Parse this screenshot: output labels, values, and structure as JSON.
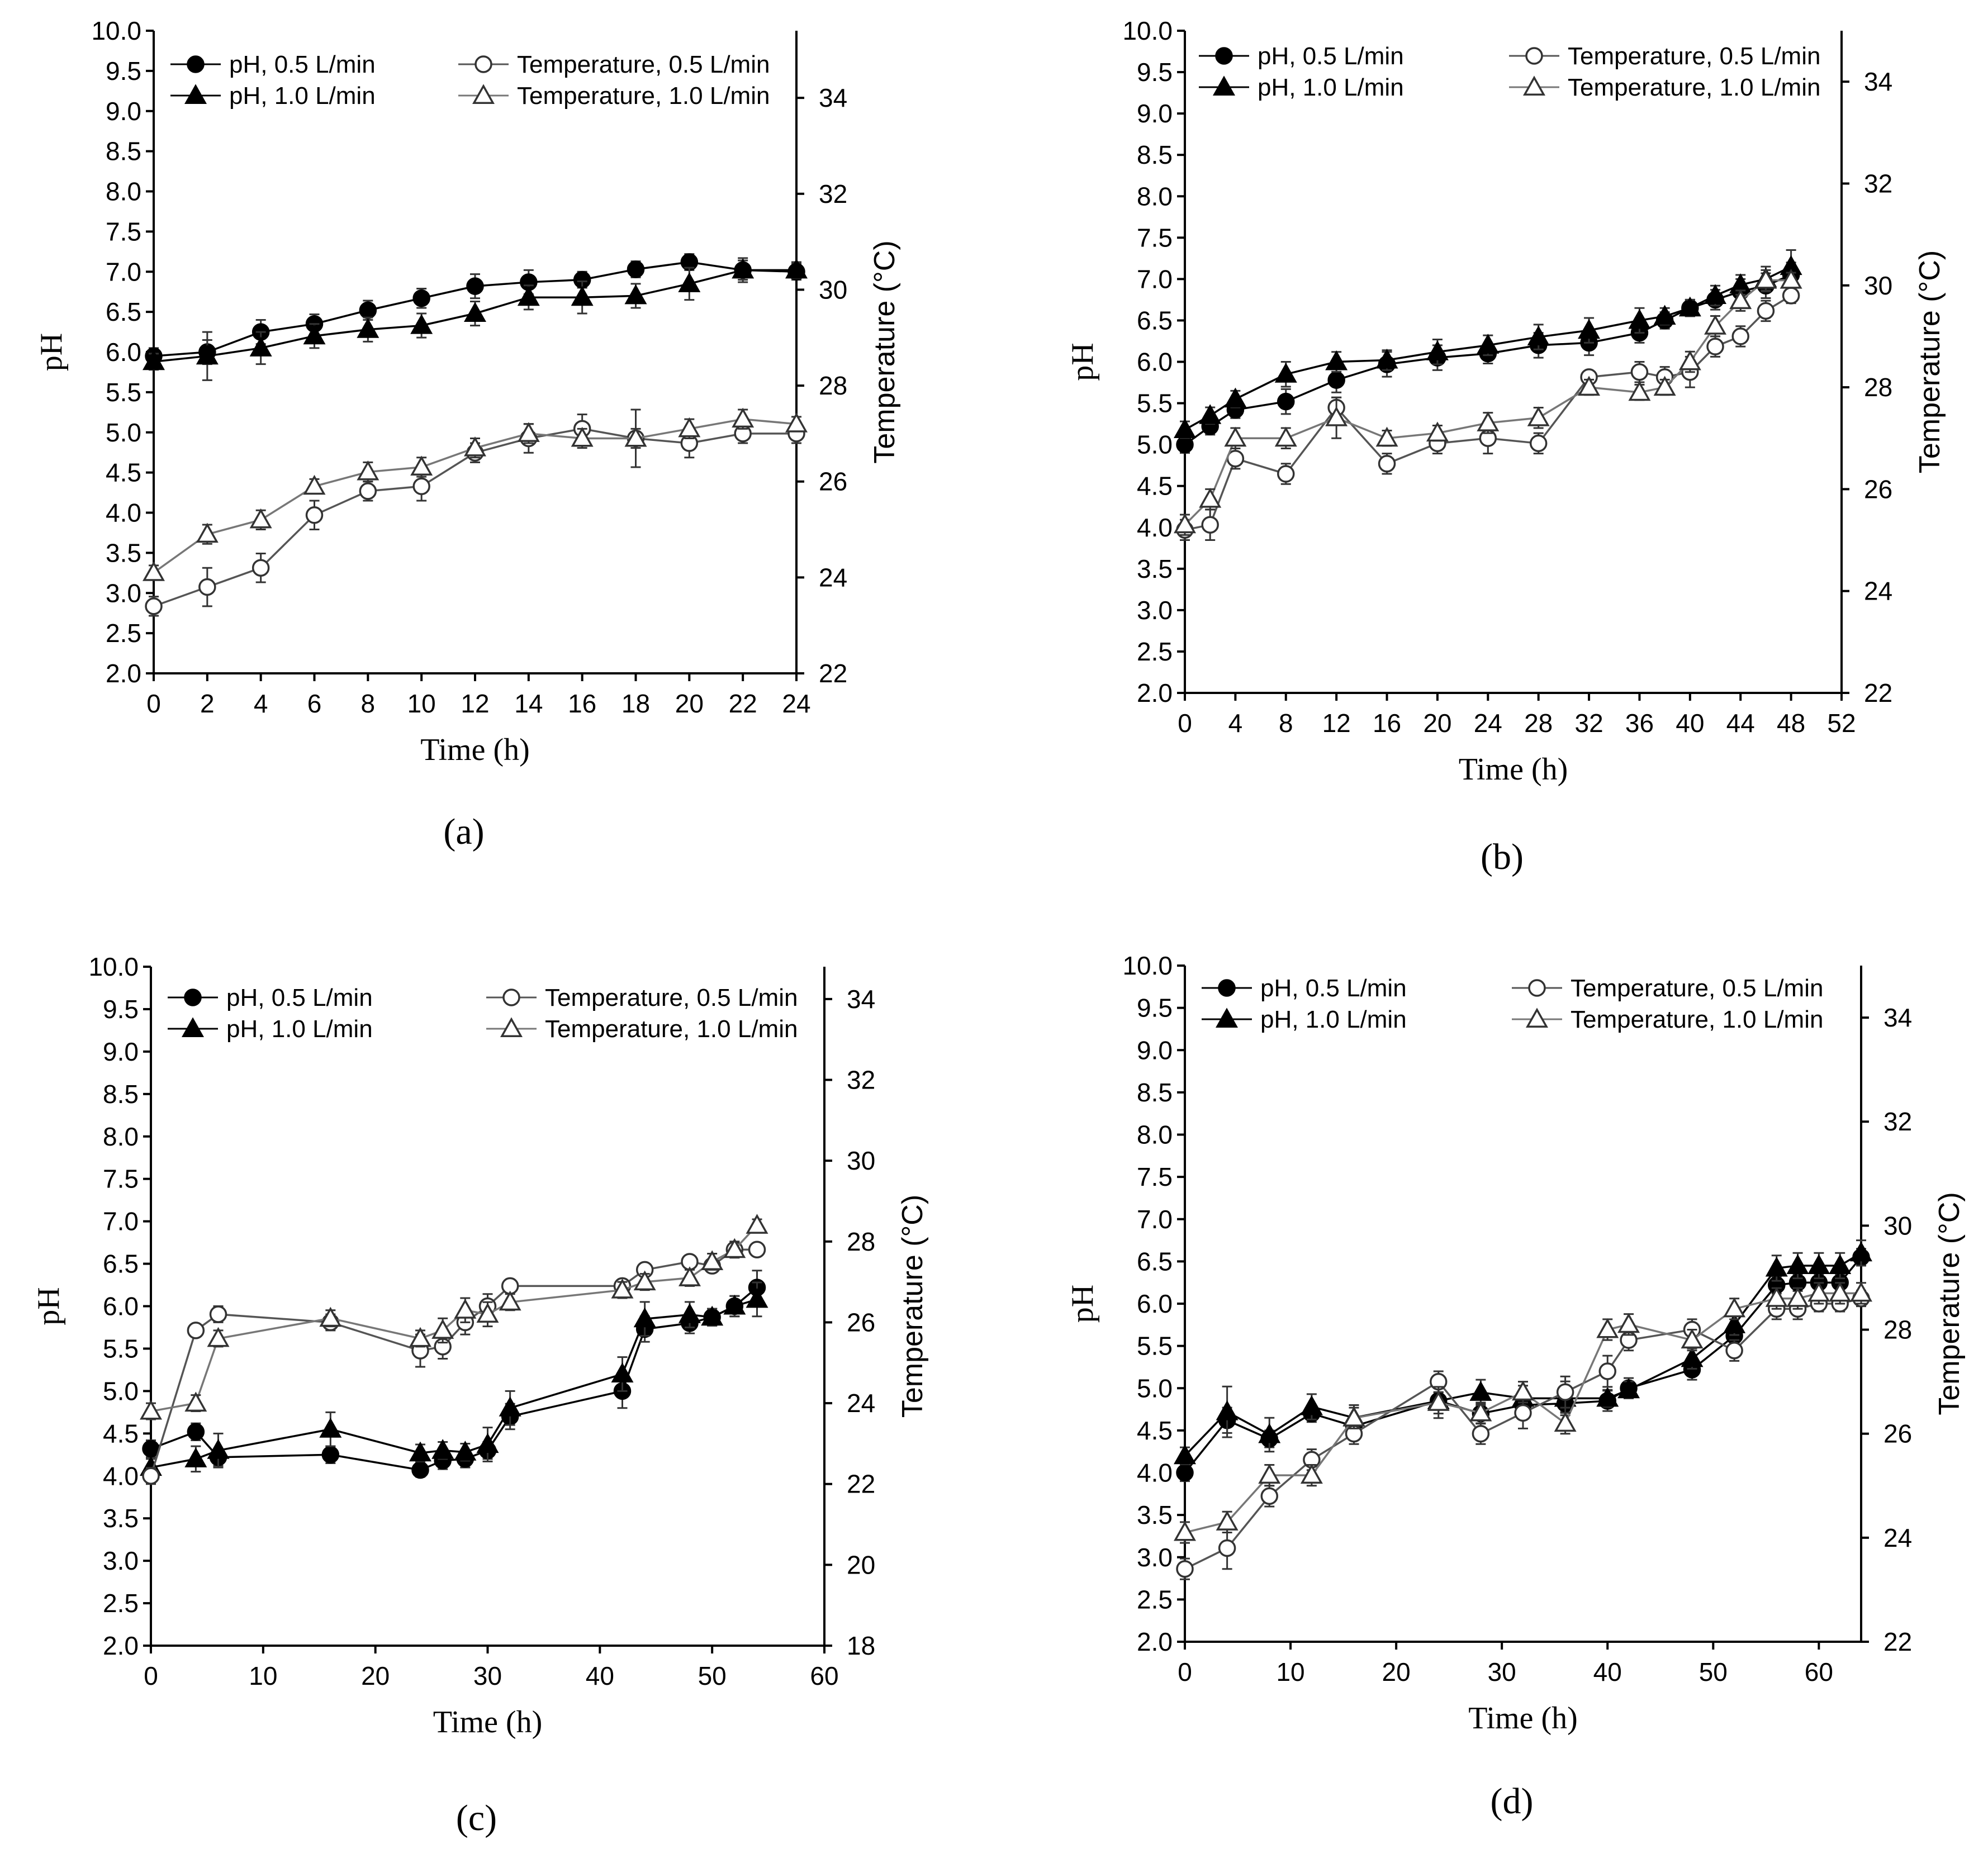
{
  "chart_data": [
    {
      "type": "line",
      "panel_label": "(a)",
      "xlabel": "Time (h)",
      "ylabel": "pH",
      "y2label": "Temperature (°C)",
      "xlim": [
        0,
        24
      ],
      "xticks": [
        0,
        2,
        4,
        6,
        8,
        10,
        12,
        14,
        16,
        18,
        20,
        22,
        24
      ],
      "ylim": [
        2.0,
        10.0
      ],
      "yticks": [
        "2.0",
        "2.5",
        "3.0",
        "3.5",
        "4.0",
        "4.5",
        "5.0",
        "5.5",
        "6.0",
        "6.5",
        "7.0",
        "7.5",
        "8.0",
        "8.5",
        "9.0",
        "9.5",
        "10.0"
      ],
      "y2lim": [
        22,
        35.4
      ],
      "y2ticks": [
        22,
        24,
        26,
        28,
        30,
        32,
        34
      ],
      "series": [
        {
          "name": "pH, 0.5 L/min",
          "axis": "left",
          "marker": "circle-filled",
          "x": [
            0,
            2,
            4,
            6,
            8,
            10,
            12,
            14,
            16,
            18,
            20,
            22,
            24
          ],
          "y": [
            5.95,
            6.0,
            6.25,
            6.35,
            6.52,
            6.67,
            6.82,
            6.87,
            6.9,
            7.03,
            7.12,
            7.02,
            7.0
          ],
          "err": [
            0.1,
            0.15,
            0.15,
            0.12,
            0.12,
            0.12,
            0.15,
            0.15,
            0.1,
            0.1,
            0.1,
            0.12,
            0.1
          ]
        },
        {
          "name": "pH, 1.0 L/min",
          "axis": "left",
          "marker": "triangle-filled",
          "x": [
            0,
            2,
            4,
            6,
            8,
            10,
            12,
            14,
            16,
            18,
            20,
            22,
            24
          ],
          "y": [
            5.88,
            5.95,
            6.05,
            6.2,
            6.28,
            6.33,
            6.48,
            6.68,
            6.68,
            6.7,
            6.85,
            7.02,
            7.02
          ],
          "err": [
            0.1,
            0.3,
            0.2,
            0.15,
            0.15,
            0.15,
            0.15,
            0.15,
            0.2,
            0.15,
            0.2,
            0.15,
            0.1
          ]
        },
        {
          "name": "Temperature, 0.5 L/min",
          "axis": "right",
          "marker": "circle-open",
          "x": [
            0,
            2,
            4,
            6,
            8,
            10,
            12,
            14,
            16,
            18,
            20,
            22,
            24
          ],
          "y": [
            23.4,
            23.8,
            24.2,
            25.3,
            25.8,
            25.9,
            26.6,
            26.9,
            27.1,
            26.9,
            26.8,
            27.0,
            27.0
          ],
          "err": [
            0.2,
            0.4,
            0.3,
            0.3,
            0.2,
            0.3,
            0.2,
            0.3,
            0.3,
            0.6,
            0.3,
            0.2,
            0.2
          ]
        },
        {
          "name": "Temperature, 1.0 L/min",
          "axis": "right",
          "marker": "triangle-open",
          "x": [
            0,
            2,
            4,
            6,
            8,
            10,
            12,
            14,
            16,
            18,
            20,
            22,
            24
          ],
          "y": [
            24.1,
            24.9,
            25.2,
            25.9,
            26.2,
            26.3,
            26.7,
            27.0,
            26.9,
            26.9,
            27.1,
            27.3,
            27.2
          ],
          "err": [
            0.15,
            0.2,
            0.2,
            0.15,
            0.2,
            0.2,
            0.2,
            0.2,
            0.2,
            0.2,
            0.2,
            0.2,
            0.15
          ]
        }
      ]
    },
    {
      "type": "line",
      "panel_label": "(b)",
      "xlabel": "Time (h)",
      "ylabel": "pH",
      "y2label": "Temperature (°C)",
      "xlim": [
        0,
        52
      ],
      "xticks": [
        0,
        4,
        8,
        12,
        16,
        20,
        24,
        28,
        32,
        36,
        40,
        44,
        48,
        52
      ],
      "ylim": [
        2.0,
        10.0
      ],
      "yticks": [
        "2.0",
        "2.5",
        "3.0",
        "3.5",
        "4.0",
        "4.5",
        "5.0",
        "5.5",
        "6.0",
        "6.5",
        "7.0",
        "7.5",
        "8.0",
        "8.5",
        "9.0",
        "9.5",
        "10.0"
      ],
      "y2lim": [
        22,
        35.0
      ],
      "y2ticks": [
        22,
        24,
        26,
        28,
        30,
        32,
        34
      ],
      "series": [
        {
          "name": "pH, 0.5 L/min",
          "axis": "left",
          "marker": "circle-filled",
          "x": [
            0,
            2,
            4,
            8,
            12,
            16,
            20,
            24,
            28,
            32,
            36,
            38,
            40,
            42,
            44,
            46,
            48
          ],
          "y": [
            5.0,
            5.22,
            5.42,
            5.52,
            5.78,
            5.97,
            6.05,
            6.1,
            6.2,
            6.23,
            6.35,
            6.5,
            6.65,
            6.75,
            6.85,
            6.92,
            7.05
          ],
          "err": [
            0.1,
            0.1,
            0.1,
            0.15,
            0.15,
            0.15,
            0.15,
            0.12,
            0.15,
            0.15,
            0.12,
            0.1,
            0.1,
            0.12,
            0.15,
            0.15,
            0.15
          ]
        },
        {
          "name": "pH, 1.0 L/min",
          "axis": "left",
          "marker": "triangle-filled",
          "x": [
            0,
            2,
            4,
            8,
            12,
            16,
            20,
            24,
            28,
            32,
            36,
            38,
            40,
            42,
            44,
            46,
            48
          ],
          "y": [
            5.18,
            5.35,
            5.55,
            5.85,
            6.0,
            6.02,
            6.12,
            6.2,
            6.3,
            6.38,
            6.5,
            6.55,
            6.65,
            6.8,
            6.93,
            7.0,
            7.15
          ],
          "err": [
            0.1,
            0.1,
            0.1,
            0.15,
            0.12,
            0.12,
            0.15,
            0.12,
            0.15,
            0.15,
            0.15,
            0.1,
            0.1,
            0.12,
            0.12,
            0.15,
            0.2
          ]
        },
        {
          "name": "Temperature, 0.5 L/min",
          "axis": "right",
          "marker": "circle-open",
          "x": [
            0,
            2,
            4,
            8,
            12,
            16,
            20,
            24,
            28,
            32,
            36,
            38,
            40,
            42,
            44,
            46,
            48
          ],
          "y": [
            25.2,
            25.3,
            26.6,
            26.3,
            27.6,
            26.5,
            26.9,
            27.0,
            26.9,
            28.2,
            28.3,
            28.2,
            28.3,
            28.8,
            29.0,
            29.5,
            29.8
          ],
          "err": [
            0.2,
            0.3,
            0.2,
            0.2,
            0.2,
            0.2,
            0.2,
            0.3,
            0.2,
            0.1,
            0.2,
            0.2,
            0.3,
            0.2,
            0.2,
            0.2,
            0.15
          ]
        },
        {
          "name": "Temperature, 1.0 L/min",
          "axis": "right",
          "marker": "triangle-open",
          "x": [
            0,
            2,
            4,
            8,
            12,
            16,
            20,
            24,
            28,
            32,
            36,
            38,
            40,
            42,
            44,
            46,
            48
          ],
          "y": [
            25.3,
            25.8,
            27.0,
            27.0,
            27.4,
            27.0,
            27.1,
            27.3,
            27.4,
            28.0,
            27.9,
            28.0,
            28.5,
            29.2,
            29.7,
            30.1,
            30.1
          ],
          "err": [
            0.2,
            0.2,
            0.2,
            0.2,
            0.4,
            0.15,
            0.15,
            0.2,
            0.2,
            0.15,
            0.15,
            0.15,
            0.2,
            0.2,
            0.2,
            0.2,
            0.15
          ]
        }
      ]
    },
    {
      "type": "line",
      "panel_label": "(c)",
      "xlabel": "Time (h)",
      "ylabel": "pH",
      "y2label": "Temperature (°C)",
      "xlim": [
        0,
        60
      ],
      "xticks": [
        0,
        10,
        20,
        30,
        40,
        50,
        60
      ],
      "ylim": [
        2.0,
        10.0
      ],
      "yticks": [
        "2.0",
        "2.5",
        "3.0",
        "3.5",
        "4.0",
        "4.5",
        "5.0",
        "5.5",
        "6.0",
        "6.5",
        "7.0",
        "7.5",
        "8.0",
        "8.5",
        "9.0",
        "9.5",
        "10.0"
      ],
      "y2lim": [
        18,
        34.8
      ],
      "y2ticks": [
        18,
        20,
        22,
        24,
        26,
        28,
        30,
        32,
        34
      ],
      "series": [
        {
          "name": "pH, 0.5 L/min",
          "axis": "left",
          "marker": "circle-filled",
          "x": [
            0,
            4,
            6,
            16,
            24,
            26,
            28,
            30,
            32,
            42,
            44,
            48,
            50,
            52,
            54
          ],
          "y": [
            4.32,
            4.52,
            4.22,
            4.25,
            4.07,
            4.18,
            4.2,
            4.3,
            4.7,
            5.0,
            5.73,
            5.8,
            5.87,
            6.0,
            6.22
          ],
          "err": [
            0.1,
            0.1,
            0.1,
            0.1,
            0.08,
            0.1,
            0.1,
            0.1,
            0.15,
            0.2,
            0.15,
            0.12,
            0.1,
            0.12,
            0.2
          ]
        },
        {
          "name": "pH, 1.0 L/min",
          "axis": "left",
          "marker": "triangle-filled",
          "x": [
            0,
            4,
            6,
            16,
            24,
            26,
            28,
            30,
            32,
            42,
            44,
            48,
            50,
            52,
            54
          ],
          "y": [
            4.1,
            4.2,
            4.3,
            4.55,
            4.27,
            4.3,
            4.28,
            4.37,
            4.8,
            5.2,
            5.85,
            5.9,
            5.87,
            6.0,
            6.08
          ],
          "err": [
            0.1,
            0.15,
            0.2,
            0.2,
            0.1,
            0.1,
            0.1,
            0.2,
            0.2,
            0.2,
            0.2,
            0.15,
            0.1,
            0.12,
            0.2
          ]
        },
        {
          "name": "Temperature, 0.5 L/min",
          "axis": "right",
          "marker": "circle-open",
          "x": [
            0,
            4,
            6,
            16,
            24,
            26,
            28,
            30,
            32,
            42,
            44,
            48,
            50,
            52,
            54
          ],
          "y": [
            22.2,
            25.8,
            26.2,
            26.0,
            25.3,
            25.4,
            26.0,
            26.4,
            26.9,
            26.9,
            27.3,
            27.5,
            27.4,
            27.8,
            27.8
          ],
          "err": [
            0.2,
            0.15,
            0.2,
            0.2,
            0.4,
            0.3,
            0.3,
            0.3,
            0.15,
            0.15,
            0.15,
            0.15,
            0.15,
            0.15,
            0.15
          ]
        },
        {
          "name": "Temperature, 1.0 L/min",
          "axis": "right",
          "marker": "triangle-open",
          "x": [
            0,
            4,
            6,
            16,
            24,
            26,
            28,
            30,
            32,
            42,
            44,
            48,
            50,
            52,
            54
          ],
          "y": [
            23.8,
            24.0,
            25.6,
            26.1,
            25.6,
            25.8,
            26.3,
            26.2,
            26.5,
            26.8,
            27.0,
            27.1,
            27.5,
            27.8,
            28.4
          ],
          "err": [
            0.2,
            0.2,
            0.2,
            0.2,
            0.2,
            0.3,
            0.3,
            0.3,
            0.2,
            0.2,
            0.2,
            0.2,
            0.2,
            0.2,
            0.15
          ]
        }
      ]
    },
    {
      "type": "line",
      "panel_label": "(d)",
      "xlabel": "Time (h)",
      "ylabel": "pH",
      "y2label": "Temperature (°C)",
      "xlim": [
        0,
        64
      ],
      "xticks": [
        0,
        10,
        20,
        30,
        40,
        50,
        60
      ],
      "ylim": [
        2.0,
        10.0
      ],
      "yticks": [
        "2.0",
        "2.5",
        "3.0",
        "3.5",
        "4.0",
        "4.5",
        "5.0",
        "5.5",
        "6.0",
        "6.5",
        "7.0",
        "7.5",
        "8.0",
        "8.5",
        "9.0",
        "9.5",
        "10.0"
      ],
      "y2lim": [
        22,
        35.0
      ],
      "y2ticks": [
        22,
        24,
        26,
        28,
        30,
        32,
        34
      ],
      "series": [
        {
          "name": "pH, 0.5 L/min",
          "axis": "left",
          "marker": "circle-filled",
          "x": [
            0,
            4,
            8,
            12,
            16,
            24,
            28,
            32,
            36,
            40,
            42,
            48,
            52,
            56,
            58,
            60,
            62,
            64
          ],
          "y": [
            4.0,
            4.62,
            4.4,
            4.7,
            4.55,
            4.85,
            4.7,
            4.8,
            4.82,
            4.85,
            5.0,
            5.22,
            5.62,
            6.22,
            6.25,
            6.25,
            6.25,
            6.55
          ],
          "err": [
            0.1,
            0.15,
            0.1,
            0.1,
            0.1,
            0.1,
            0.12,
            0.1,
            0.1,
            0.12,
            0.12,
            0.12,
            0.12,
            0.1,
            0.1,
            0.1,
            0.1,
            0.1
          ]
        },
        {
          "name": "pH, 1.0 L/min",
          "axis": "left",
          "marker": "triangle-filled",
          "x": [
            0,
            4,
            8,
            12,
            16,
            24,
            28,
            32,
            36,
            40,
            42,
            48,
            52,
            56,
            58,
            60,
            62,
            64
          ],
          "y": [
            4.2,
            4.72,
            4.45,
            4.78,
            4.65,
            4.85,
            4.95,
            4.88,
            4.88,
            4.88,
            4.98,
            5.35,
            5.75,
            6.42,
            6.45,
            6.45,
            6.45,
            6.6
          ],
          "err": [
            0.1,
            0.3,
            0.2,
            0.15,
            0.15,
            0.15,
            0.15,
            0.15,
            0.2,
            0.1,
            0.1,
            0.12,
            0.12,
            0.15,
            0.15,
            0.15,
            0.15,
            0.15
          ]
        },
        {
          "name": "Temperature, 0.5 L/min",
          "axis": "right",
          "marker": "circle-open",
          "x": [
            0,
            4,
            8,
            12,
            16,
            24,
            28,
            32,
            36,
            40,
            42,
            48,
            52,
            56,
            58,
            60,
            62,
            64
          ],
          "y": [
            23.4,
            23.8,
            24.8,
            25.5,
            26.0,
            27.0,
            26.0,
            26.4,
            26.8,
            27.2,
            27.8,
            28.0,
            27.6,
            28.4,
            28.4,
            28.5,
            28.5,
            28.6
          ],
          "err": [
            0.2,
            0.4,
            0.2,
            0.2,
            0.2,
            0.2,
            0.2,
            0.3,
            0.3,
            0.3,
            0.2,
            0.2,
            0.2,
            0.2,
            0.2,
            0.15,
            0.15,
            0.15
          ]
        },
        {
          "name": "Temperature, 1.0 L/min",
          "axis": "right",
          "marker": "triangle-open",
          "x": [
            0,
            4,
            8,
            12,
            16,
            24,
            28,
            32,
            36,
            40,
            42,
            48,
            52,
            56,
            58,
            60,
            62,
            64
          ],
          "y": [
            24.1,
            24.3,
            25.2,
            25.2,
            26.3,
            26.6,
            26.4,
            26.8,
            26.2,
            28.0,
            28.1,
            27.8,
            28.4,
            28.6,
            28.6,
            28.7,
            28.7,
            28.7
          ],
          "err": [
            0.2,
            0.2,
            0.2,
            0.2,
            0.2,
            0.3,
            0.2,
            0.2,
            0.2,
            0.2,
            0.2,
            0.2,
            0.2,
            0.2,
            0.2,
            0.2,
            0.2,
            0.2
          ]
        }
      ]
    }
  ]
}
